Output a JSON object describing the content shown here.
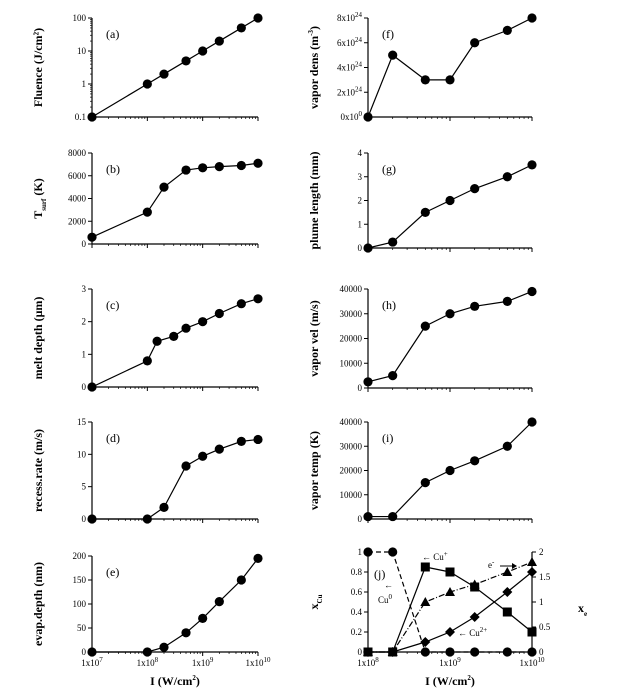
{
  "chart_data": [
    {
      "id": "a",
      "type": "line",
      "panel_label": "(a)",
      "ylabel": "Fluence (J/cm²)",
      "yscale": "log",
      "ylim": [
        0.1,
        100
      ],
      "yticks": [
        "0.1",
        "1",
        "10",
        "100"
      ],
      "xscale": "log",
      "xlim": [
        10000000.0,
        10000000000.0
      ],
      "x": [
        10000000.0,
        100000000.0,
        200000000.0,
        500000000.0,
        1000000000.0,
        2000000000.0,
        5000000000.0,
        10000000000.0
      ],
      "values": [
        0.1,
        1,
        2,
        5,
        10,
        20,
        50,
        100
      ]
    },
    {
      "id": "b",
      "type": "line",
      "panel_label": "(b)",
      "ylabel": "T",
      "ylabel_sub": "surf",
      "ylabel_unit": " (K)",
      "ylim": [
        0,
        8000
      ],
      "yticks": [
        "0",
        "2000",
        "4000",
        "6000",
        "8000"
      ],
      "xscale": "log",
      "xlim": [
        10000000.0,
        10000000000.0
      ],
      "x": [
        10000000.0,
        100000000.0,
        200000000.0,
        500000000.0,
        1000000000.0,
        2000000000.0,
        5000000000.0,
        10000000000.0
      ],
      "values": [
        600,
        2800,
        5000,
        6500,
        6700,
        6800,
        6900,
        7100
      ]
    },
    {
      "id": "c",
      "type": "line",
      "panel_label": "(c)",
      "ylabel": "melt depth (μm)",
      "ylim": [
        0,
        3
      ],
      "yticks": [
        "0",
        "1",
        "2",
        "3"
      ],
      "xscale": "log",
      "xlim": [
        10000000.0,
        10000000000.0
      ],
      "x": [
        10000000.0,
        100000000.0,
        150000000.0,
        300000000.0,
        500000000.0,
        1000000000.0,
        2000000000.0,
        5000000000.0,
        10000000000.0
      ],
      "values": [
        0,
        0.8,
        1.4,
        1.55,
        1.8,
        2.0,
        2.25,
        2.55,
        2.7
      ]
    },
    {
      "id": "d",
      "type": "line",
      "panel_label": "(d)",
      "ylabel": "recess.rate (m/s)",
      "ylim": [
        0,
        15
      ],
      "yticks": [
        "0",
        "5",
        "10",
        "15"
      ],
      "xscale": "log",
      "xlim": [
        10000000.0,
        10000000000.0
      ],
      "x": [
        10000000.0,
        100000000.0,
        200000000.0,
        500000000.0,
        1000000000.0,
        2000000000.0,
        5000000000.0,
        10000000000.0
      ],
      "values": [
        0,
        0,
        1.8,
        8.2,
        9.7,
        10.8,
        12.0,
        12.3
      ]
    },
    {
      "id": "e",
      "type": "line",
      "panel_label": "(e)",
      "ylabel": "evap.depth (nm)",
      "ylim": [
        0,
        200
      ],
      "yticks": [
        "0",
        "50",
        "100",
        "150",
        "200"
      ],
      "xscale": "log",
      "xlim": [
        10000000.0,
        10000000000.0
      ],
      "xticks": [
        "1x10",
        "1x10",
        "1x10",
        "1x10"
      ],
      "xtick_exponents": [
        "7",
        "8",
        "9",
        "10"
      ],
      "x": [
        10000000.0,
        100000000.0,
        200000000.0,
        500000000.0,
        1000000000.0,
        2000000000.0,
        5000000000.0,
        10000000000.0
      ],
      "values": [
        0,
        0,
        10,
        40,
        70,
        105,
        150,
        195
      ]
    },
    {
      "id": "f",
      "type": "line",
      "panel_label": "(f)",
      "ylabel": "vapor dens (m",
      "ylabel_sup": "-3",
      "ylabel_unit": ")",
      "ylim": [
        0,
        8e+24
      ],
      "yticks": [
        "0x10",
        "2x10",
        "4x10",
        "6x10",
        "8x10"
      ],
      "ytick_exponents": [
        "0",
        "24",
        "24",
        "24",
        "24"
      ],
      "xscale": "log",
      "xlim": [
        100000000.0,
        10000000000.0
      ],
      "x": [
        100000000.0,
        200000000.0,
        500000000.0,
        1000000000.0,
        2000000000.0,
        5000000000.0,
        10000000000.0
      ],
      "values": [
        0,
        5e+24,
        3e+24,
        3e+24,
        6e+24,
        7e+24,
        8e+24
      ]
    },
    {
      "id": "g",
      "type": "line",
      "panel_label": "(g)",
      "ylabel": "plume length (mm)",
      "ylim": [
        0,
        4
      ],
      "yticks": [
        "0",
        "1",
        "2",
        "3",
        "4"
      ],
      "xscale": "log",
      "xlim": [
        100000000.0,
        10000000000.0
      ],
      "x": [
        100000000.0,
        200000000.0,
        500000000.0,
        1000000000.0,
        2000000000.0,
        5000000000.0,
        10000000000.0
      ],
      "values": [
        0,
        0.25,
        1.5,
        2.0,
        2.5,
        3.0,
        3.5
      ]
    },
    {
      "id": "h",
      "type": "line",
      "panel_label": "(h)",
      "ylabel": "vapor vel (m/s)",
      "ylim": [
        0,
        40000
      ],
      "yticks": [
        "0",
        "10000",
        "20000",
        "30000",
        "40000"
      ],
      "xscale": "log",
      "xlim": [
        100000000.0,
        10000000000.0
      ],
      "x": [
        100000000.0,
        200000000.0,
        500000000.0,
        1000000000.0,
        2000000000.0,
        5000000000.0,
        10000000000.0
      ],
      "values": [
        2500,
        5000,
        25000,
        30000,
        33000,
        35000,
        39000
      ]
    },
    {
      "id": "i",
      "type": "line",
      "panel_label": "(i)",
      "ylabel": "vapor temp (K)",
      "ylim": [
        0,
        40000
      ],
      "yticks": [
        "0",
        "10000",
        "20000",
        "30000",
        "40000"
      ],
      "xscale": "log",
      "xlim": [
        100000000.0,
        10000000000.0
      ],
      "x": [
        100000000.0,
        200000000.0,
        500000000.0,
        1000000000.0,
        2000000000.0,
        5000000000.0,
        10000000000.0
      ],
      "values": [
        1000,
        1000,
        15000,
        20000,
        24000,
        30000,
        40000
      ]
    },
    {
      "id": "j",
      "type": "line",
      "panel_label": "(j)",
      "ylabel": "x",
      "ylabel_sub": "Cu",
      "ylabel2": "x",
      "ylabel2_sub": "e",
      "ylim": [
        0,
        1
      ],
      "yticks": [
        "0",
        "0.2",
        "0.4",
        "0.6",
        "0.8",
        "1"
      ],
      "y2lim": [
        0,
        2
      ],
      "y2ticks": [
        "0",
        "0.5",
        "1",
        "1.5",
        "2"
      ],
      "xscale": "log",
      "xlim": [
        100000000.0,
        10000000000.0
      ],
      "xticks": [
        "1x10",
        "1x10",
        "1x10"
      ],
      "xtick_exponents": [
        "8",
        "9",
        "10"
      ],
      "series": [
        {
          "name": "Cu0",
          "marker": "circle",
          "dash": "dashed",
          "x": [
            100000000.0,
            200000000.0,
            500000000.0,
            1000000000.0,
            2000000000.0,
            5000000000.0,
            10000000000.0
          ],
          "values": [
            1,
            1,
            0,
            0,
            0,
            0,
            0
          ]
        },
        {
          "name": "Cu+",
          "marker": "square",
          "dash": "solid",
          "x": [
            100000000.0,
            200000000.0,
            500000000.0,
            1000000000.0,
            2000000000.0,
            5000000000.0,
            10000000000.0
          ],
          "values": [
            0,
            0,
            0.85,
            0.8,
            0.65,
            0.4,
            0.2
          ]
        },
        {
          "name": "Cu2+",
          "marker": "diamond",
          "dash": "solid",
          "x": [
            100000000.0,
            200000000.0,
            500000000.0,
            1000000000.0,
            2000000000.0,
            5000000000.0,
            10000000000.0
          ],
          "values": [
            0,
            0,
            0.1,
            0.2,
            0.35,
            0.6,
            0.8
          ]
        },
        {
          "name": "e-",
          "marker": "triangle",
          "dash": "dashdot",
          "axis": "right",
          "x": [
            100000000.0,
            200000000.0,
            500000000.0,
            1000000000.0,
            2000000000.0,
            5000000000.0,
            10000000000.0
          ],
          "values": [
            0,
            0,
            1.0,
            1.2,
            1.35,
            1.6,
            1.8
          ]
        }
      ],
      "annotations": [
        {
          "text": "← Cu",
          "sup": "+"
        },
        {
          "text": "e",
          "sup": "-"
        },
        {
          "text": "←",
          "sup": ""
        },
        {
          "text": "Cu",
          "sup": "0"
        },
        {
          "text": "← Cu",
          "sup": "2+"
        }
      ]
    },
    {
      "id": "xlabels",
      "type": "text",
      "xlabel": "I (W/cm",
      "xlabel_sup": "2",
      "xlabel_end": ")"
    }
  ]
}
